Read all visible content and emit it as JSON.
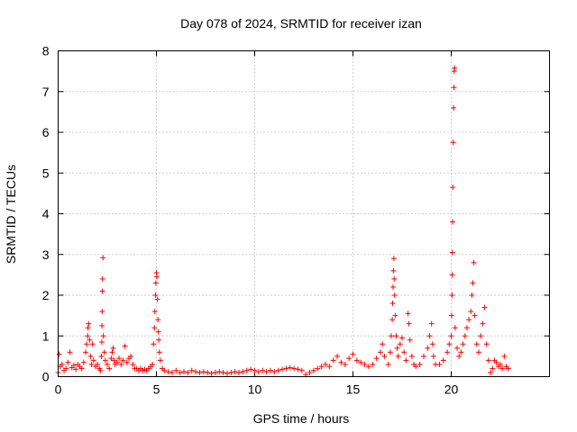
{
  "chart_data": {
    "type": "scatter",
    "title": "Day 078 of 2024, SRMTID for receiver izan",
    "xlabel": "GPS time / hours",
    "ylabel": "SRMTID / TECUs",
    "xlim": [
      0,
      25
    ],
    "ylim": [
      0,
      8
    ],
    "xticks": [
      0,
      5,
      10,
      15,
      20
    ],
    "yticks": [
      0,
      1,
      2,
      3,
      4,
      5,
      6,
      7,
      8
    ],
    "grid": true,
    "marker": "+",
    "color": "#ff0000",
    "series": [
      {
        "name": "SRMTID",
        "points": [
          [
            0.0,
            0.1
          ],
          [
            0.05,
            0.55
          ],
          [
            0.1,
            0.25
          ],
          [
            0.2,
            0.3
          ],
          [
            0.3,
            0.15
          ],
          [
            0.4,
            0.2
          ],
          [
            0.5,
            0.35
          ],
          [
            0.6,
            0.6
          ],
          [
            0.7,
            0.22
          ],
          [
            0.8,
            0.28
          ],
          [
            0.9,
            0.18
          ],
          [
            1.0,
            0.3
          ],
          [
            1.1,
            0.25
          ],
          [
            1.2,
            0.2
          ],
          [
            1.3,
            0.35
          ],
          [
            1.4,
            0.6
          ],
          [
            1.45,
            0.8
          ],
          [
            1.5,
            1.0
          ],
          [
            1.52,
            1.2
          ],
          [
            1.55,
            1.3
          ],
          [
            1.6,
            0.9
          ],
          [
            1.65,
            0.5
          ],
          [
            1.7,
            0.3
          ],
          [
            1.75,
            0.8
          ],
          [
            1.8,
            0.4
          ],
          [
            1.9,
            0.25
          ],
          [
            2.0,
            0.3
          ],
          [
            2.1,
            0.2
          ],
          [
            2.15,
            0.15
          ],
          [
            2.2,
            0.5
          ],
          [
            2.22,
            0.85
          ],
          [
            2.23,
            1.25
          ],
          [
            2.24,
            1.6
          ],
          [
            2.25,
            2.1
          ],
          [
            2.26,
            2.4
          ],
          [
            2.28,
            2.92
          ],
          [
            2.3,
            1.0
          ],
          [
            2.35,
            0.6
          ],
          [
            2.4,
            0.4
          ],
          [
            2.5,
            0.3
          ],
          [
            2.6,
            0.2
          ],
          [
            2.7,
            0.45
          ],
          [
            2.75,
            0.6
          ],
          [
            2.8,
            0.7
          ],
          [
            2.85,
            0.4
          ],
          [
            2.9,
            0.3
          ],
          [
            3.0,
            0.35
          ],
          [
            3.1,
            0.45
          ],
          [
            3.2,
            0.3
          ],
          [
            3.3,
            0.4
          ],
          [
            3.4,
            0.75
          ],
          [
            3.5,
            0.35
          ],
          [
            3.6,
            0.45
          ],
          [
            3.7,
            0.5
          ],
          [
            3.8,
            0.3
          ],
          [
            3.9,
            0.2
          ],
          [
            4.0,
            0.2
          ],
          [
            4.1,
            0.15
          ],
          [
            4.2,
            0.2
          ],
          [
            4.3,
            0.15
          ],
          [
            4.4,
            0.18
          ],
          [
            4.5,
            0.15
          ],
          [
            4.6,
            0.2
          ],
          [
            4.7,
            0.25
          ],
          [
            4.8,
            0.3
          ],
          [
            4.85,
            0.8
          ],
          [
            4.9,
            1.2
          ],
          [
            4.92,
            1.6
          ],
          [
            4.95,
            2.0
          ],
          [
            4.97,
            2.3
          ],
          [
            5.0,
            2.55
          ],
          [
            5.02,
            2.45
          ],
          [
            5.05,
            1.9
          ],
          [
            5.08,
            1.4
          ],
          [
            5.1,
            1.1
          ],
          [
            5.12,
            0.9
          ],
          [
            5.15,
            0.6
          ],
          [
            5.2,
            0.4
          ],
          [
            5.3,
            0.2
          ],
          [
            5.4,
            0.15
          ],
          [
            5.6,
            0.12
          ],
          [
            5.8,
            0.1
          ],
          [
            6.0,
            0.15
          ],
          [
            6.2,
            0.1
          ],
          [
            6.4,
            0.12
          ],
          [
            6.6,
            0.1
          ],
          [
            6.8,
            0.15
          ],
          [
            7.0,
            0.12
          ],
          [
            7.2,
            0.1
          ],
          [
            7.4,
            0.12
          ],
          [
            7.6,
            0.1
          ],
          [
            7.8,
            0.08
          ],
          [
            8.0,
            0.1
          ],
          [
            8.2,
            0.12
          ],
          [
            8.4,
            0.1
          ],
          [
            8.6,
            0.08
          ],
          [
            8.8,
            0.1
          ],
          [
            9.0,
            0.12
          ],
          [
            9.2,
            0.1
          ],
          [
            9.4,
            0.12
          ],
          [
            9.6,
            0.15
          ],
          [
            9.8,
            0.18
          ],
          [
            10.0,
            0.15
          ],
          [
            10.2,
            0.12
          ],
          [
            10.4,
            0.15
          ],
          [
            10.6,
            0.12
          ],
          [
            10.8,
            0.15
          ],
          [
            11.0,
            0.12
          ],
          [
            11.2,
            0.15
          ],
          [
            11.4,
            0.18
          ],
          [
            11.6,
            0.2
          ],
          [
            11.8,
            0.22
          ],
          [
            12.0,
            0.2
          ],
          [
            12.2,
            0.18
          ],
          [
            12.4,
            0.15
          ],
          [
            12.6,
            0.05
          ],
          [
            12.8,
            0.1
          ],
          [
            13.0,
            0.15
          ],
          [
            13.2,
            0.2
          ],
          [
            13.4,
            0.25
          ],
          [
            13.6,
            0.3
          ],
          [
            13.8,
            0.25
          ],
          [
            14.0,
            0.4
          ],
          [
            14.2,
            0.5
          ],
          [
            14.4,
            0.35
          ],
          [
            14.6,
            0.3
          ],
          [
            14.8,
            0.45
          ],
          [
            15.0,
            0.55
          ],
          [
            15.2,
            0.4
          ],
          [
            15.4,
            0.35
          ],
          [
            15.6,
            0.3
          ],
          [
            15.8,
            0.25
          ],
          [
            16.0,
            0.3
          ],
          [
            16.2,
            0.45
          ],
          [
            16.4,
            0.6
          ],
          [
            16.5,
            0.8
          ],
          [
            16.6,
            0.5
          ],
          [
            16.8,
            0.3
          ],
          [
            16.9,
            0.6
          ],
          [
            16.95,
            1.0
          ],
          [
            17.0,
            1.4
          ],
          [
            17.02,
            1.8
          ],
          [
            17.04,
            2.2
          ],
          [
            17.06,
            2.6
          ],
          [
            17.08,
            2.9
          ],
          [
            17.1,
            2.4
          ],
          [
            17.12,
            2.0
          ],
          [
            17.15,
            1.5
          ],
          [
            17.2,
            1.0
          ],
          [
            17.25,
            0.7
          ],
          [
            17.3,
            0.5
          ],
          [
            17.4,
            0.8
          ],
          [
            17.5,
            0.95
          ],
          [
            17.6,
            0.6
          ],
          [
            17.7,
            0.4
          ],
          [
            17.8,
            1.55
          ],
          [
            17.85,
            1.3
          ],
          [
            17.9,
            0.9
          ],
          [
            18.0,
            0.5
          ],
          [
            18.1,
            0.3
          ],
          [
            18.2,
            0.25
          ],
          [
            18.4,
            0.3
          ],
          [
            18.6,
            0.5
          ],
          [
            18.8,
            0.7
          ],
          [
            18.9,
            1.0
          ],
          [
            19.0,
            1.3
          ],
          [
            19.05,
            0.8
          ],
          [
            19.1,
            0.5
          ],
          [
            19.2,
            0.3
          ],
          [
            19.4,
            0.3
          ],
          [
            19.6,
            0.4
          ],
          [
            19.8,
            0.6
          ],
          [
            19.9,
            0.8
          ],
          [
            20.0,
            1.0
          ],
          [
            20.02,
            1.5
          ],
          [
            20.04,
            2.0
          ],
          [
            20.05,
            2.5
          ],
          [
            20.06,
            3.05
          ],
          [
            20.07,
            3.8
          ],
          [
            20.08,
            4.65
          ],
          [
            20.1,
            5.75
          ],
          [
            20.12,
            6.6
          ],
          [
            20.14,
            7.1
          ],
          [
            20.15,
            7.5
          ],
          [
            20.17,
            7.58
          ],
          [
            20.2,
            1.2
          ],
          [
            20.3,
            0.7
          ],
          [
            20.4,
            0.5
          ],
          [
            20.5,
            0.6
          ],
          [
            20.6,
            0.8
          ],
          [
            20.7,
            1.0
          ],
          [
            20.8,
            1.2
          ],
          [
            20.9,
            1.4
          ],
          [
            21.0,
            1.6
          ],
          [
            21.05,
            2.0
          ],
          [
            21.1,
            2.3
          ],
          [
            21.15,
            2.8
          ],
          [
            21.2,
            1.5
          ],
          [
            21.3,
            0.8
          ],
          [
            21.4,
            0.6
          ],
          [
            21.5,
            1.0
          ],
          [
            21.6,
            1.3
          ],
          [
            21.7,
            1.7
          ],
          [
            21.8,
            0.8
          ],
          [
            21.9,
            0.4
          ],
          [
            22.0,
            0.1
          ],
          [
            22.1,
            0.2
          ],
          [
            22.2,
            0.4
          ],
          [
            22.3,
            0.35
          ],
          [
            22.4,
            0.25
          ],
          [
            22.5,
            0.3
          ],
          [
            22.6,
            0.2
          ],
          [
            22.7,
            0.5
          ],
          [
            22.8,
            0.25
          ],
          [
            22.9,
            0.2
          ]
        ]
      }
    ]
  }
}
